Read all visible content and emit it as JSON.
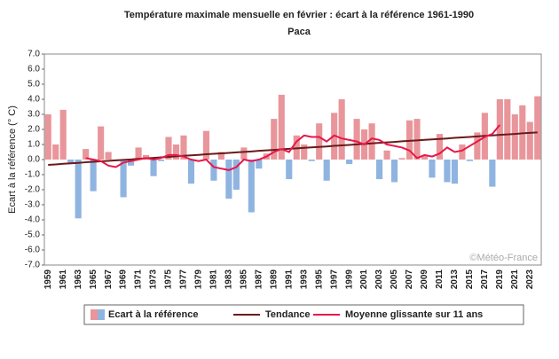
{
  "chart_data": {
    "type": "bar",
    "title": "Température maximale mensuelle en février : écart à la référence 1961-1990",
    "subtitle": "Paca",
    "y_label": "Ecart à la référence (° C)",
    "watermark": "©Météo-France",
    "positive_color": "#e8969b",
    "negative_color": "#8fb4e0",
    "grid": false,
    "legend": "bottom",
    "categories": [
      "1959",
      null,
      "1961",
      null,
      "1963",
      null,
      "1965",
      null,
      "1967",
      null,
      "1969",
      null,
      "1971",
      null,
      "1973",
      null,
      "1975",
      null,
      "1977",
      null,
      "1979",
      null,
      "1981",
      null,
      "1983",
      null,
      "1985",
      null,
      "1987",
      null,
      "1989",
      null,
      "1991",
      null,
      "1993",
      null,
      "1995",
      null,
      "1997",
      null,
      "1999",
      null,
      "2001",
      null,
      "2003",
      null,
      "2005",
      null,
      "2007",
      null,
      "2009",
      null,
      "2011",
      null,
      "2013",
      null,
      "2015",
      null,
      "2017",
      null,
      "2019",
      null,
      "2021",
      null,
      "2023",
      null
    ],
    "ylim": [
      -7,
      7
    ],
    "yticks": [
      {
        "value": -7,
        "label": "-7.0"
      },
      {
        "value": -6,
        "label": "-6.0"
      },
      {
        "value": -5,
        "label": "-5.0"
      },
      {
        "value": -4,
        "label": "-4.0"
      },
      {
        "value": -3,
        "label": "-3.0"
      },
      {
        "value": -2,
        "label": "-2.0"
      },
      {
        "value": -1,
        "label": "-1.0"
      },
      {
        "value": 0,
        "label": "0.0"
      },
      {
        "value": 1,
        "label": "1.0"
      },
      {
        "value": 2,
        "label": "2.0"
      },
      {
        "value": 3,
        "label": "3.0"
      },
      {
        "value": 4,
        "label": "4.0"
      },
      {
        "value": 5,
        "label": "5.0"
      },
      {
        "value": 6,
        "label": "6.0"
      },
      {
        "value": 7,
        "label": "7.0"
      }
    ],
    "series": [
      {
        "name": "Ecart à la référence",
        "type": "bar",
        "values": [
          3.0,
          1.0,
          3.3,
          -0.3,
          -3.9,
          0.7,
          -2.1,
          2.2,
          0.5,
          -0.1,
          -2.5,
          -0.4,
          0.8,
          0.3,
          -1.1,
          -0.1,
          1.5,
          1.0,
          1.6,
          -1.6,
          0.0,
          1.9,
          -1.4,
          0.5,
          -2.6,
          -2.0,
          0.8,
          -3.5,
          -0.6,
          0.4,
          2.7,
          4.3,
          -1.3,
          1.6,
          1.0,
          -0.1,
          2.4,
          -1.4,
          3.1,
          4.0,
          -0.3,
          2.7,
          2.0,
          2.4,
          -1.3,
          0.6,
          -1.5,
          0.1,
          2.6,
          2.7,
          0.3,
          -1.2,
          1.7,
          -1.5,
          -1.6,
          1.0,
          -0.1,
          1.8,
          3.1,
          -1.8,
          4.0,
          4.0,
          3.0,
          3.6,
          2.5,
          4.2
        ]
      },
      {
        "name": "Tendance",
        "type": "line",
        "color": "#6b1a1a",
        "values": [
          -0.35,
          -0.32,
          -0.28,
          -0.25,
          -0.22,
          -0.18,
          -0.15,
          -0.12,
          -0.09,
          -0.05,
          -0.02,
          0.01,
          0.05,
          0.08,
          0.11,
          0.15,
          0.18,
          0.21,
          0.25,
          0.28,
          0.31,
          0.35,
          0.38,
          0.41,
          0.44,
          0.48,
          0.51,
          0.54,
          0.58,
          0.61,
          0.64,
          0.68,
          0.71,
          0.74,
          0.78,
          0.81,
          0.84,
          0.87,
          0.91,
          0.94,
          0.97,
          1.01,
          1.04,
          1.07,
          1.11,
          1.14,
          1.17,
          1.21,
          1.24,
          1.27,
          1.31,
          1.34,
          1.37,
          1.4,
          1.44,
          1.47,
          1.5,
          1.54,
          1.57,
          1.6,
          1.64,
          1.67,
          1.7,
          1.74,
          1.77,
          1.8
        ]
      },
      {
        "name": "Moyenne glissante sur 11 ans",
        "type": "line",
        "color": "#e8174a",
        "values": [
          null,
          null,
          null,
          null,
          null,
          0.1,
          0.0,
          -0.1,
          -0.4,
          -0.5,
          -0.2,
          -0.1,
          0.0,
          0.1,
          0.0,
          0.1,
          0.3,
          0.3,
          0.2,
          0.0,
          -0.1,
          0.0,
          -0.5,
          -0.6,
          -0.7,
          -0.5,
          0.0,
          -0.1,
          0.0,
          0.2,
          0.5,
          0.7,
          0.5,
          1.2,
          1.6,
          1.5,
          1.5,
          1.2,
          1.6,
          1.4,
          1.3,
          1.2,
          1.0,
          1.4,
          1.3,
          1.0,
          0.9,
          0.8,
          0.6,
          0.1,
          0.3,
          0.2,
          0.4,
          0.8,
          0.5,
          0.6,
          0.9,
          1.2,
          1.5,
          1.7,
          2.3,
          null,
          null,
          null,
          null,
          null
        ]
      }
    ]
  }
}
